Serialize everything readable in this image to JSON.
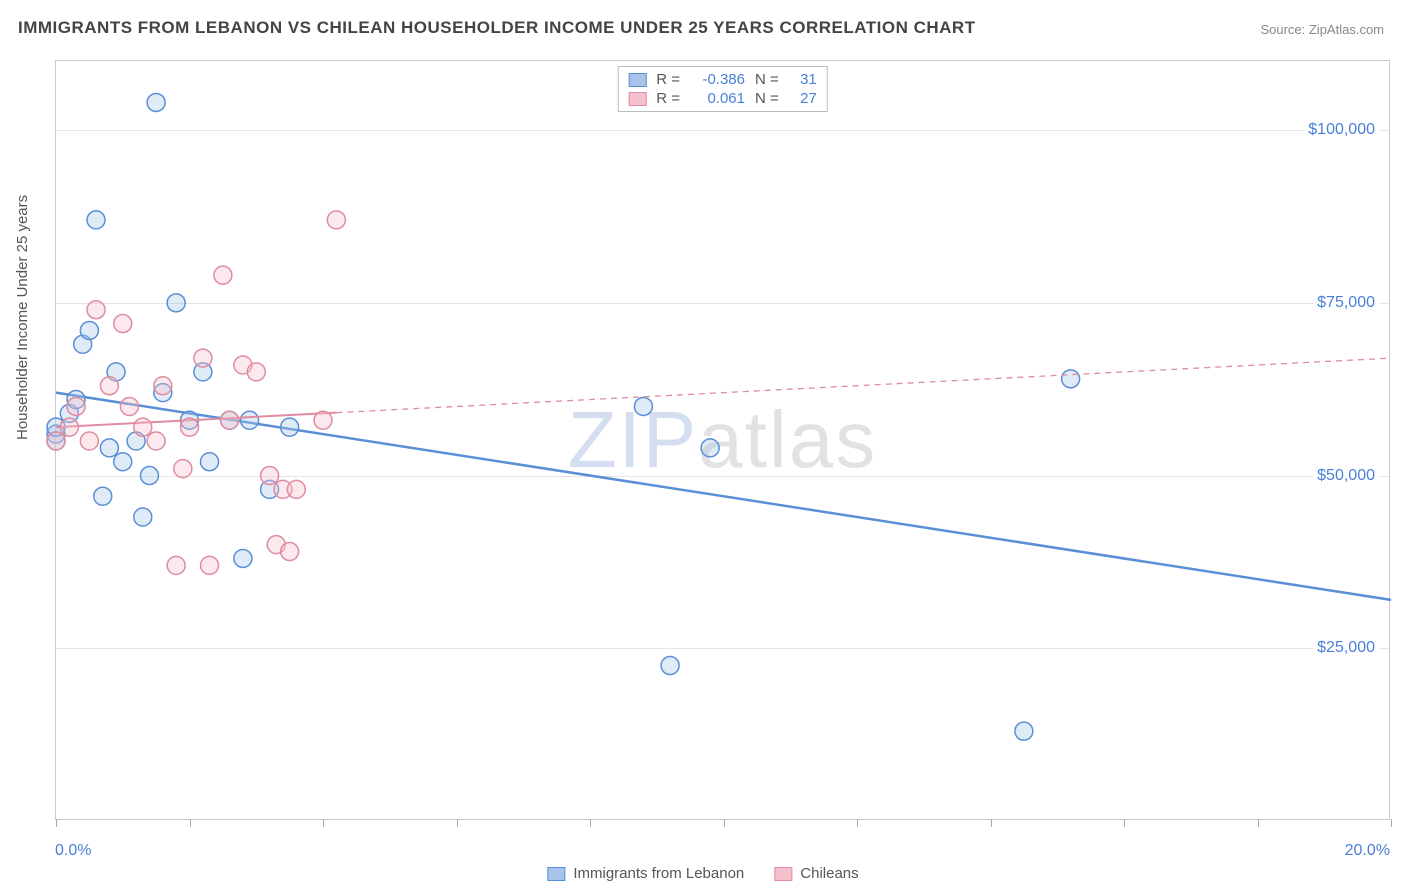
{
  "title": "IMMIGRANTS FROM LEBANON VS CHILEAN HOUSEHOLDER INCOME UNDER 25 YEARS CORRELATION CHART",
  "source": "Source: ZipAtlas.com",
  "watermark_zip": "ZIP",
  "watermark_atlas": "atlas",
  "yaxis_title": "Householder Income Under 25 years",
  "chart": {
    "type": "scatter",
    "background_color": "#ffffff",
    "grid_color": "#e5e5e5",
    "border_color": "#cccccc",
    "xlim": [
      0,
      20
    ],
    "ylim": [
      0,
      110000
    ],
    "xtick_positions": [
      0,
      2,
      4,
      6,
      8,
      10,
      12,
      14,
      16,
      18,
      20
    ],
    "ytick_values": [
      25000,
      50000,
      75000,
      100000
    ],
    "ytick_labels": [
      "$25,000",
      "$50,000",
      "$75,000",
      "$100,000"
    ],
    "xaxis_min_label": "0.0%",
    "xaxis_max_label": "20.0%",
    "marker_radius": 9,
    "marker_stroke_width": 1.5,
    "marker_fill_opacity": 0.35,
    "series": [
      {
        "name": "Immigrants from Lebanon",
        "color_stroke": "#5a8fd6",
        "color_fill": "#a7c5ea",
        "R": "-0.386",
        "N": "31",
        "trend": {
          "x1": 0,
          "y1": 62000,
          "x2": 20,
          "y2": 32000,
          "solid_until_x": 20,
          "stroke_width": 2.5
        },
        "points": [
          [
            0.0,
            56000
          ],
          [
            0.0,
            55000
          ],
          [
            0.0,
            57000
          ],
          [
            0.2,
            59000
          ],
          [
            0.4,
            69000
          ],
          [
            0.5,
            71000
          ],
          [
            0.6,
            87000
          ],
          [
            0.7,
            47000
          ],
          [
            0.8,
            54000
          ],
          [
            0.9,
            65000
          ],
          [
            1.0,
            52000
          ],
          [
            1.2,
            55000
          ],
          [
            1.3,
            44000
          ],
          [
            1.4,
            50000
          ],
          [
            1.5,
            104000
          ],
          [
            1.6,
            62000
          ],
          [
            1.8,
            75000
          ],
          [
            2.0,
            58000
          ],
          [
            2.2,
            65000
          ],
          [
            2.3,
            52000
          ],
          [
            2.6,
            58000
          ],
          [
            2.8,
            38000
          ],
          [
            2.9,
            58000
          ],
          [
            3.2,
            48000
          ],
          [
            3.5,
            57000
          ],
          [
            8.8,
            60000
          ],
          [
            9.2,
            22500
          ],
          [
            9.8,
            54000
          ],
          [
            14.5,
            13000
          ],
          [
            15.2,
            64000
          ],
          [
            0.3,
            61000
          ]
        ]
      },
      {
        "name": "Chileans",
        "color_stroke": "#e08ca0",
        "color_fill": "#f4c0cc",
        "R": "0.061",
        "N": "27",
        "trend": {
          "x1": 0,
          "y1": 57000,
          "x2": 20,
          "y2": 67000,
          "solid_until_x": 4.2,
          "stroke_width": 2,
          "dash": "6,5"
        },
        "points": [
          [
            0.0,
            55000
          ],
          [
            0.2,
            57000
          ],
          [
            0.3,
            60000
          ],
          [
            0.5,
            55000
          ],
          [
            0.6,
            74000
          ],
          [
            0.8,
            63000
          ],
          [
            1.0,
            72000
          ],
          [
            1.1,
            60000
          ],
          [
            1.3,
            57000
          ],
          [
            1.5,
            55000
          ],
          [
            1.6,
            63000
          ],
          [
            1.8,
            37000
          ],
          [
            1.9,
            51000
          ],
          [
            2.0,
            57000
          ],
          [
            2.2,
            67000
          ],
          [
            2.3,
            37000
          ],
          [
            2.5,
            79000
          ],
          [
            2.6,
            58000
          ],
          [
            2.8,
            66000
          ],
          [
            3.0,
            65000
          ],
          [
            3.2,
            50000
          ],
          [
            3.3,
            40000
          ],
          [
            3.4,
            48000
          ],
          [
            3.5,
            39000
          ],
          [
            3.6,
            48000
          ],
          [
            4.0,
            58000
          ],
          [
            4.2,
            87000
          ]
        ]
      }
    ]
  },
  "legend_top_labels": {
    "R": "R =",
    "N": "N ="
  },
  "legend_bottom": [
    {
      "label": "Immigrants from Lebanon",
      "stroke": "#5a8fd6",
      "fill": "#a7c5ea"
    },
    {
      "label": "Chileans",
      "stroke": "#e08ca0",
      "fill": "#f4c0cc"
    }
  ]
}
